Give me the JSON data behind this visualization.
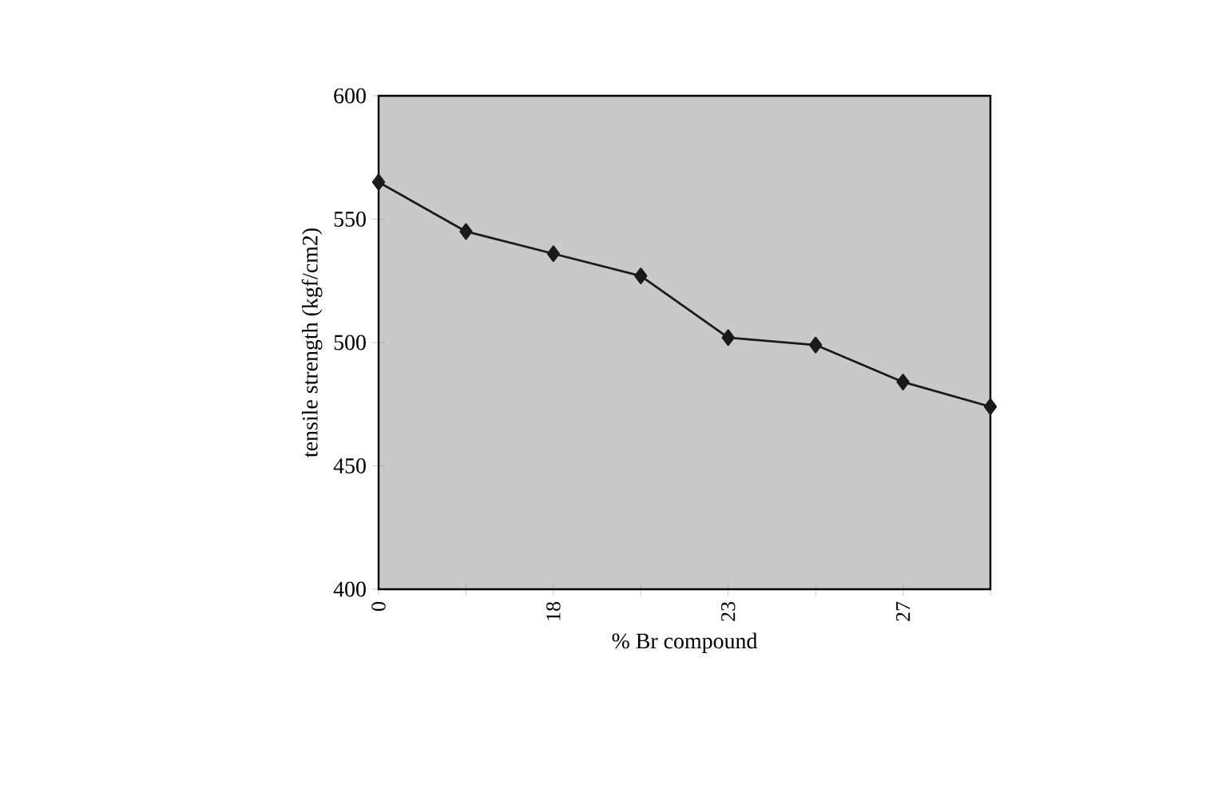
{
  "chart_data": {
    "type": "line",
    "xlabel": "% Br compound",
    "ylabel": "tensile strength (kgf/cm2)",
    "categories": [
      "0",
      null,
      "18",
      null,
      "23",
      null,
      "27",
      null
    ],
    "values": [
      565,
      545,
      536,
      527,
      502,
      499,
      484,
      474
    ],
    "color": "#1a1a1a",
    "marker": "diamond",
    "line_style": "solid",
    "ylim": [
      400,
      600
    ],
    "yticks": [
      400,
      450,
      500,
      550,
      600
    ]
  }
}
